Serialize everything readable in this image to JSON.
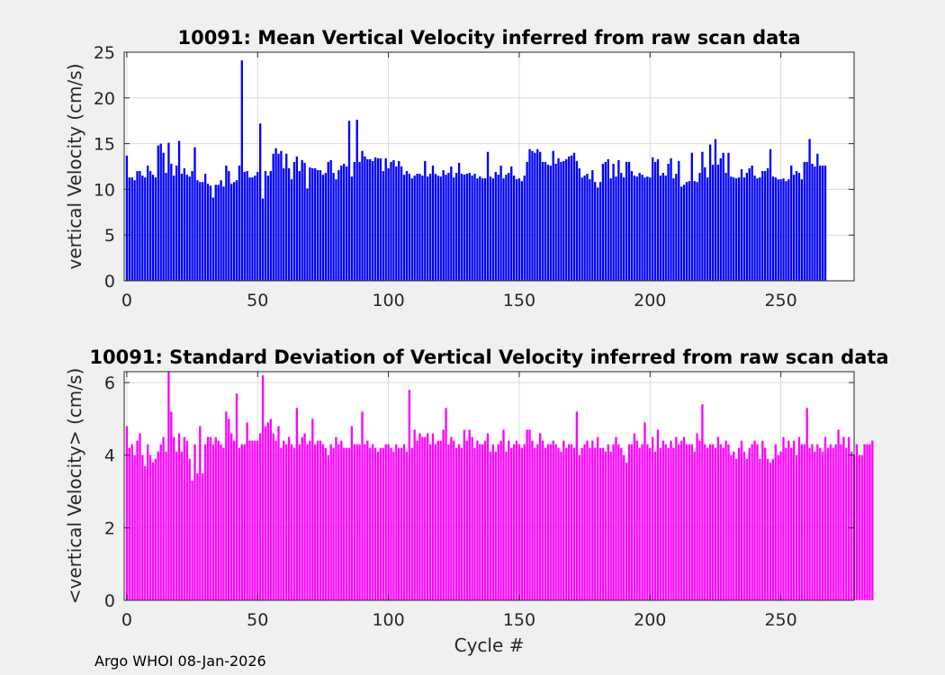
{
  "footer": "Argo WHOI 08-Jan-2026",
  "chart_data": [
    {
      "type": "bar",
      "title": "10091: Mean Vertical Velocity inferred from raw scan data",
      "xlabel": "",
      "ylabel": "vertical Velocity (cm/s)",
      "xlim": [
        -1,
        278
      ],
      "ylim": [
        0,
        25
      ],
      "xticks": [
        0,
        50,
        100,
        150,
        200,
        250
      ],
      "yticks": [
        0,
        5,
        10,
        15,
        20,
        25
      ],
      "grid": true,
      "color": "#0000ff",
      "x_start": 0,
      "values": [
        13.7,
        11.3,
        11.3,
        11.0,
        12.0,
        12.0,
        11.5,
        11.3,
        12.6,
        12.0,
        11.6,
        11.3,
        14.8,
        15.0,
        14.0,
        11.8,
        15.1,
        12.8,
        11.5,
        12.6,
        15.3,
        11.7,
        12.3,
        11.6,
        11.4,
        12.0,
        14.6,
        11.0,
        10.8,
        10.8,
        11.7,
        10.6,
        10.4,
        9.1,
        10.5,
        10.5,
        11.0,
        10.3,
        12.6,
        12.0,
        10.6,
        10.8,
        11.0,
        12.6,
        24.1,
        11.9,
        12.0,
        11.3,
        11.3,
        11.5,
        11.9,
        17.2,
        9.0,
        12.0,
        11.5,
        12.0,
        13.9,
        14.5,
        13.9,
        14.2,
        12.3,
        13.9,
        12.3,
        11.1,
        13.0,
        13.6,
        12.0,
        13.2,
        12.9,
        10.1,
        12.4,
        12.3,
        12.3,
        12.1,
        12.1,
        11.6,
        11.8,
        13.0,
        13.2,
        11.8,
        11.1,
        12.1,
        12.6,
        12.8,
        12.5,
        17.5,
        11.4,
        13.0,
        17.6,
        13.0,
        14.2,
        13.6,
        13.3,
        13.3,
        13.1,
        13.5,
        13.4,
        13.4,
        12.0,
        13.4,
        12.3,
        13.0,
        13.2,
        12.5,
        13.1,
        12.5,
        11.6,
        12.0,
        11.7,
        11.2,
        11.5,
        11.7,
        11.7,
        11.5,
        13.1,
        11.4,
        11.7,
        12.6,
        11.7,
        11.5,
        11.4,
        12.1,
        11.6,
        11.8,
        12.5,
        11.3,
        11.8,
        12.9,
        11.7,
        11.6,
        11.7,
        11.8,
        11.5,
        11.7,
        11.2,
        11.4,
        11.2,
        11.2,
        14.1,
        11.4,
        11.2,
        11.9,
        11.6,
        12.6,
        11.2,
        11.6,
        11.8,
        12.5,
        11.5,
        11.1,
        11.2,
        10.9,
        11.5,
        13.0,
        14.4,
        14.2,
        14.0,
        14.4,
        14.1,
        13.0,
        13.0,
        12.7,
        12.6,
        14.2,
        12.8,
        13.4,
        13.0,
        13.1,
        13.3,
        13.6,
        13.7,
        14.0,
        13.1,
        12.3,
        11.3,
        11.5,
        11.7,
        11.1,
        12.1,
        10.8,
        10.2,
        10.8,
        12.8,
        13.0,
        13.3,
        11.2,
        12.8,
        11.4,
        13.2,
        11.8,
        11.3,
        13.0,
        13.0,
        12.0,
        11.5,
        11.4,
        11.8,
        11.6,
        11.3,
        11.4,
        11.3,
        13.5,
        13.0,
        13.3,
        11.5,
        11.8,
        11.5,
        12.8,
        13.4,
        11.2,
        11.7,
        13.1,
        10.3,
        10.5,
        10.8,
        10.9,
        14.0,
        10.9,
        10.8,
        11.8,
        14.1,
        12.4,
        11.3,
        14.9,
        12.7,
        15.5,
        12.7,
        13.4,
        14.0,
        11.8,
        14.0,
        11.4,
        11.3,
        11.2,
        11.3,
        12.2,
        11.3,
        11.8,
        12.3,
        12.6,
        11.5,
        11.2,
        11.3,
        12.0,
        12.0,
        12.3,
        14.4,
        11.4,
        11.3,
        11.1,
        11.1,
        11.2,
        10.9,
        11.1,
        12.6,
        11.6,
        12.0,
        11.8,
        11.1,
        13.0,
        13.0,
        15.5,
        12.8,
        12.5,
        13.9,
        12.6,
        12.6,
        12.6
      ]
    },
    {
      "type": "bar",
      "title": "10091: Standard Deviation of Vertical Velocity inferred from raw scan data",
      "xlabel": "Cycle #",
      "ylabel": "<vertical Velocity> (cm/s)",
      "xlim": [
        -1,
        278
      ],
      "ylim": [
        0,
        6.3
      ],
      "xticks": [
        0,
        50,
        100,
        150,
        200,
        250
      ],
      "yticks": [
        0,
        2,
        4,
        6
      ],
      "grid": true,
      "color": "#ff00ff",
      "x_start": 0,
      "values": [
        4.8,
        4.2,
        4.3,
        4.0,
        4.4,
        4.6,
        4.0,
        3.7,
        4.3,
        4.0,
        3.8,
        3.9,
        4.1,
        4.3,
        4.5,
        4.1,
        6.3,
        5.2,
        4.5,
        4.1,
        4.6,
        4.1,
        4.5,
        4.4,
        3.9,
        3.3,
        4.3,
        3.5,
        4.8,
        3.5,
        4.3,
        4.5,
        4.5,
        4.3,
        4.5,
        4.4,
        4.3,
        4.2,
        5.2,
        5.0,
        4.6,
        4.4,
        5.7,
        4.2,
        4.3,
        4.3,
        4.9,
        4.4,
        4.4,
        4.4,
        4.4,
        4.6,
        6.2,
        4.8,
        4.9,
        5.0,
        4.6,
        4.4,
        4.8,
        4.2,
        4.4,
        4.3,
        4.5,
        4.3,
        4.2,
        5.3,
        4.3,
        4.5,
        4.6,
        4.3,
        4.4,
        5.0,
        4.3,
        4.4,
        4.4,
        4.3,
        4.2,
        4.0,
        4.3,
        4.2,
        4.5,
        4.3,
        4.4,
        4.2,
        4.2,
        4.2,
        4.8,
        4.3,
        4.3,
        4.3,
        5.2,
        4.3,
        4.4,
        4.2,
        4.3,
        4.2,
        4.1,
        4.2,
        4.2,
        4.3,
        4.3,
        4.2,
        4.1,
        4.3,
        4.2,
        4.2,
        4.3,
        4.1,
        5.8,
        4.2,
        4.7,
        4.4,
        4.6,
        4.5,
        4.5,
        4.6,
        4.3,
        4.6,
        4.3,
        4.4,
        4.4,
        4.7,
        5.3,
        4.3,
        4.5,
        4.4,
        4.2,
        4.3,
        4.2,
        4.7,
        4.4,
        4.7,
        4.5,
        4.2,
        4.4,
        4.3,
        4.3,
        4.4,
        4.6,
        4.1,
        4.3,
        4.1,
        4.3,
        4.4,
        4.7,
        4.1,
        4.4,
        4.2,
        4.3,
        4.4,
        4.3,
        4.2,
        4.3,
        4.7,
        4.7,
        4.4,
        4.2,
        4.3,
        4.6,
        4.4,
        4.2,
        4.3,
        4.3,
        4.4,
        4.3,
        4.2,
        4.1,
        4.4,
        4.2,
        4.3,
        4.3,
        4.2,
        5.2,
        4.0,
        4.2,
        4.3,
        4.4,
        4.2,
        4.4,
        4.2,
        4.5,
        4.2,
        4.2,
        4.1,
        4.3,
        4.1,
        4.3,
        4.5,
        4.3,
        4.2,
        4.0,
        3.8,
        4.3,
        4.3,
        4.6,
        4.4,
        4.2,
        4.3,
        4.9,
        4.3,
        4.2,
        4.5,
        4.1,
        4.7,
        4.2,
        4.4,
        4.3,
        4.2,
        4.4,
        4.2,
        4.5,
        4.3,
        4.4,
        4.5,
        4.3,
        4.3,
        4.3,
        4.1,
        4.6,
        4.4,
        5.4,
        4.3,
        4.2,
        4.3,
        4.3,
        4.2,
        4.5,
        4.3,
        4.2,
        4.4,
        4.3,
        4.0,
        4.1,
        3.9,
        4.2,
        4.4,
        4.1,
        3.9,
        4.2,
        4.3,
        4.4,
        4.3,
        3.9,
        4.4,
        4.2,
        3.9,
        3.8,
        3.9,
        4.3,
        4.0,
        4.1,
        4.5,
        4.2,
        4.4,
        4.2,
        4.4,
        4.0,
        4.5,
        4.3,
        4.3,
        5.3,
        4.2,
        4.3,
        4.1,
        4.3,
        4.2,
        4.1,
        4.5,
        4.2,
        4.3,
        4.2,
        4.3,
        4.7,
        4.3,
        4.5,
        4.2,
        4.5,
        4.1,
        4.0,
        4.3,
        4.0,
        4.0,
        4.3,
        4.3,
        4.3,
        4.4
      ]
    }
  ]
}
